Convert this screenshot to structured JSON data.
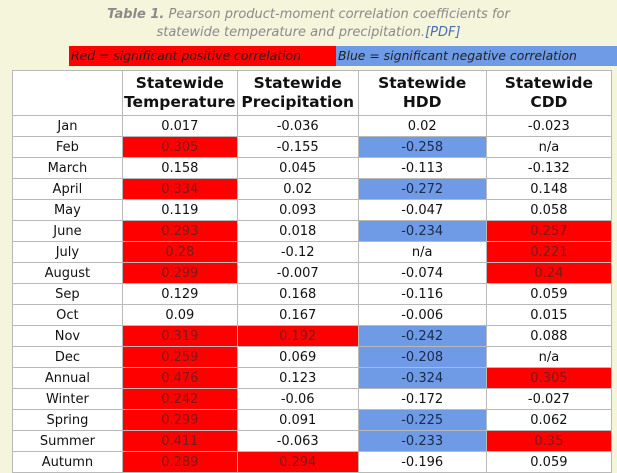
{
  "caption": {
    "title_bold": "Table 1.",
    "title_line1": " Pearson product-moment correlation coefficients for",
    "title_line2": "statewide temperature and precipitation.",
    "pdf_link": "[PDF]"
  },
  "legend": {
    "red_label": "Red = significant positive correlation",
    "blue_label": "Blue = significant negative correlation",
    "red_color": "#ff0000",
    "blue_color": "#6f9be6"
  },
  "table": {
    "headers": [
      [
        "Statewide",
        "Temperature"
      ],
      [
        "Statewide",
        "Precipitation"
      ],
      [
        "Statewide",
        "HDD"
      ],
      [
        "Statewide",
        "CDD"
      ]
    ],
    "rows": [
      {
        "label": "Jan",
        "cells": [
          {
            "v": "0.017",
            "s": ""
          },
          {
            "v": "-0.036",
            "s": ""
          },
          {
            "v": "0.02",
            "s": ""
          },
          {
            "v": "-0.023",
            "s": ""
          }
        ]
      },
      {
        "label": "Feb",
        "cells": [
          {
            "v": "0.305",
            "s": "pos"
          },
          {
            "v": "-0.155",
            "s": ""
          },
          {
            "v": "-0.258",
            "s": "neg"
          },
          {
            "v": "n/a",
            "s": ""
          }
        ]
      },
      {
        "label": "March",
        "cells": [
          {
            "v": "0.158",
            "s": ""
          },
          {
            "v": "0.045",
            "s": ""
          },
          {
            "v": "-0.113",
            "s": ""
          },
          {
            "v": "-0.132",
            "s": ""
          }
        ]
      },
      {
        "label": "April",
        "cells": [
          {
            "v": "0.334",
            "s": "pos"
          },
          {
            "v": "0.02",
            "s": ""
          },
          {
            "v": "-0.272",
            "s": "neg"
          },
          {
            "v": "0.148",
            "s": ""
          }
        ]
      },
      {
        "label": "May",
        "cells": [
          {
            "v": "0.119",
            "s": ""
          },
          {
            "v": "0.093",
            "s": ""
          },
          {
            "v": "-0.047",
            "s": ""
          },
          {
            "v": "0.058",
            "s": ""
          }
        ]
      },
      {
        "label": "June",
        "cells": [
          {
            "v": "0.293",
            "s": "pos"
          },
          {
            "v": "0.018",
            "s": ""
          },
          {
            "v": "-0.234",
            "s": "neg"
          },
          {
            "v": "0.257",
            "s": "pos"
          }
        ]
      },
      {
        "label": "July",
        "cells": [
          {
            "v": "0.28",
            "s": "pos"
          },
          {
            "v": "-0.12",
            "s": ""
          },
          {
            "v": "n/a",
            "s": ""
          },
          {
            "v": "0.221",
            "s": "pos"
          }
        ]
      },
      {
        "label": "August",
        "cells": [
          {
            "v": "0.299",
            "s": "pos"
          },
          {
            "v": "-0.007",
            "s": ""
          },
          {
            "v": "-0.074",
            "s": ""
          },
          {
            "v": "0.24",
            "s": "pos"
          }
        ]
      },
      {
        "label": "Sep",
        "cells": [
          {
            "v": "0.129",
            "s": ""
          },
          {
            "v": "0.168",
            "s": ""
          },
          {
            "v": "-0.116",
            "s": ""
          },
          {
            "v": "0.059",
            "s": ""
          }
        ]
      },
      {
        "label": "Oct",
        "cells": [
          {
            "v": "0.09",
            "s": ""
          },
          {
            "v": "0.167",
            "s": ""
          },
          {
            "v": "-0.006",
            "s": ""
          },
          {
            "v": "0.015",
            "s": ""
          }
        ]
      },
      {
        "label": "Nov",
        "cells": [
          {
            "v": "0.319",
            "s": "pos"
          },
          {
            "v": "0.192",
            "s": "pos"
          },
          {
            "v": "-0.242",
            "s": "neg"
          },
          {
            "v": "0.088",
            "s": ""
          }
        ]
      },
      {
        "label": "Dec",
        "cells": [
          {
            "v": "0.259",
            "s": "pos"
          },
          {
            "v": "0.069",
            "s": ""
          },
          {
            "v": "-0.208",
            "s": "neg"
          },
          {
            "v": "n/a",
            "s": ""
          }
        ]
      },
      {
        "label": "Annual",
        "cells": [
          {
            "v": "0.476",
            "s": "pos"
          },
          {
            "v": "0.123",
            "s": ""
          },
          {
            "v": "-0.324",
            "s": "neg"
          },
          {
            "v": "0.305",
            "s": "pos"
          }
        ]
      },
      {
        "label": "Winter",
        "cells": [
          {
            "v": "0.242",
            "s": "pos"
          },
          {
            "v": "-0.06",
            "s": ""
          },
          {
            "v": "-0.172",
            "s": ""
          },
          {
            "v": "-0.027",
            "s": ""
          }
        ]
      },
      {
        "label": "Spring",
        "cells": [
          {
            "v": "0.299",
            "s": "pos"
          },
          {
            "v": "0.091",
            "s": ""
          },
          {
            "v": "-0.225",
            "s": "neg"
          },
          {
            "v": "0.062",
            "s": ""
          }
        ]
      },
      {
        "label": "Summer",
        "cells": [
          {
            "v": "0.411",
            "s": "pos"
          },
          {
            "v": "-0.063",
            "s": ""
          },
          {
            "v": "-0.233",
            "s": "neg"
          },
          {
            "v": "0.35",
            "s": "pos"
          }
        ]
      },
      {
        "label": "Autumn",
        "cells": [
          {
            "v": "0.289",
            "s": "pos"
          },
          {
            "v": "0.294",
            "s": "pos"
          },
          {
            "v": "-0.196",
            "s": ""
          },
          {
            "v": "0.059",
            "s": ""
          }
        ]
      }
    ]
  }
}
